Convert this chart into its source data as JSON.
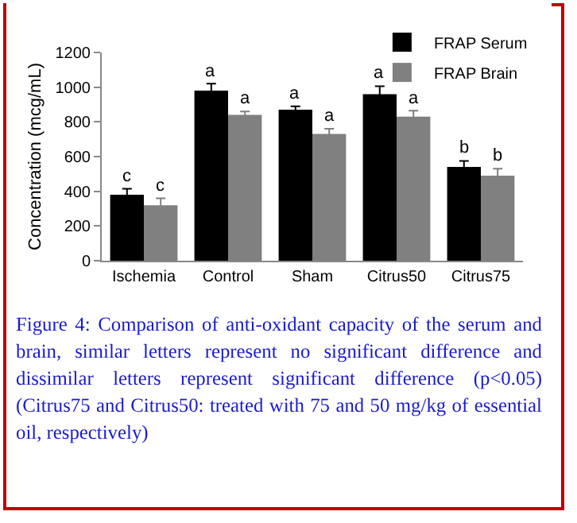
{
  "chart_data": {
    "type": "bar",
    "ylabel": "Concentration (mcg/mL)",
    "categories": [
      "Ischemia",
      "Control",
      "Sham",
      "Citrus50",
      "Citrus75"
    ],
    "series": [
      {
        "name": "FRAP Serum",
        "color": "#000000",
        "values": [
          380,
          980,
          870,
          960,
          540
        ],
        "errors": [
          35,
          40,
          20,
          45,
          35
        ],
        "value_labels": [
          "c",
          "a",
          "a",
          "a",
          "b"
        ]
      },
      {
        "name": "FRAP Brain",
        "color": "#808080",
        "values": [
          320,
          840,
          730,
          830,
          490
        ],
        "errors": [
          40,
          20,
          30,
          35,
          40
        ],
        "value_labels": [
          "c",
          "a",
          "a",
          "a",
          "b"
        ]
      }
    ],
    "ylim": [
      0,
      1200
    ],
    "yticks": [
      0,
      200,
      400,
      600,
      800,
      1000,
      1200
    ],
    "grid": false,
    "legend": "top right",
    "annotations": [
      "Figure 4: Comparison of anti-oxidant capacity of the serum and brain, similar letters represent no significant difference and dissimilar letters represent significant difference (p<0.05) (Citrus75 and Citrus50: treated with 75 and 50 mg/kg of essential oil, respectively)"
    ]
  }
}
